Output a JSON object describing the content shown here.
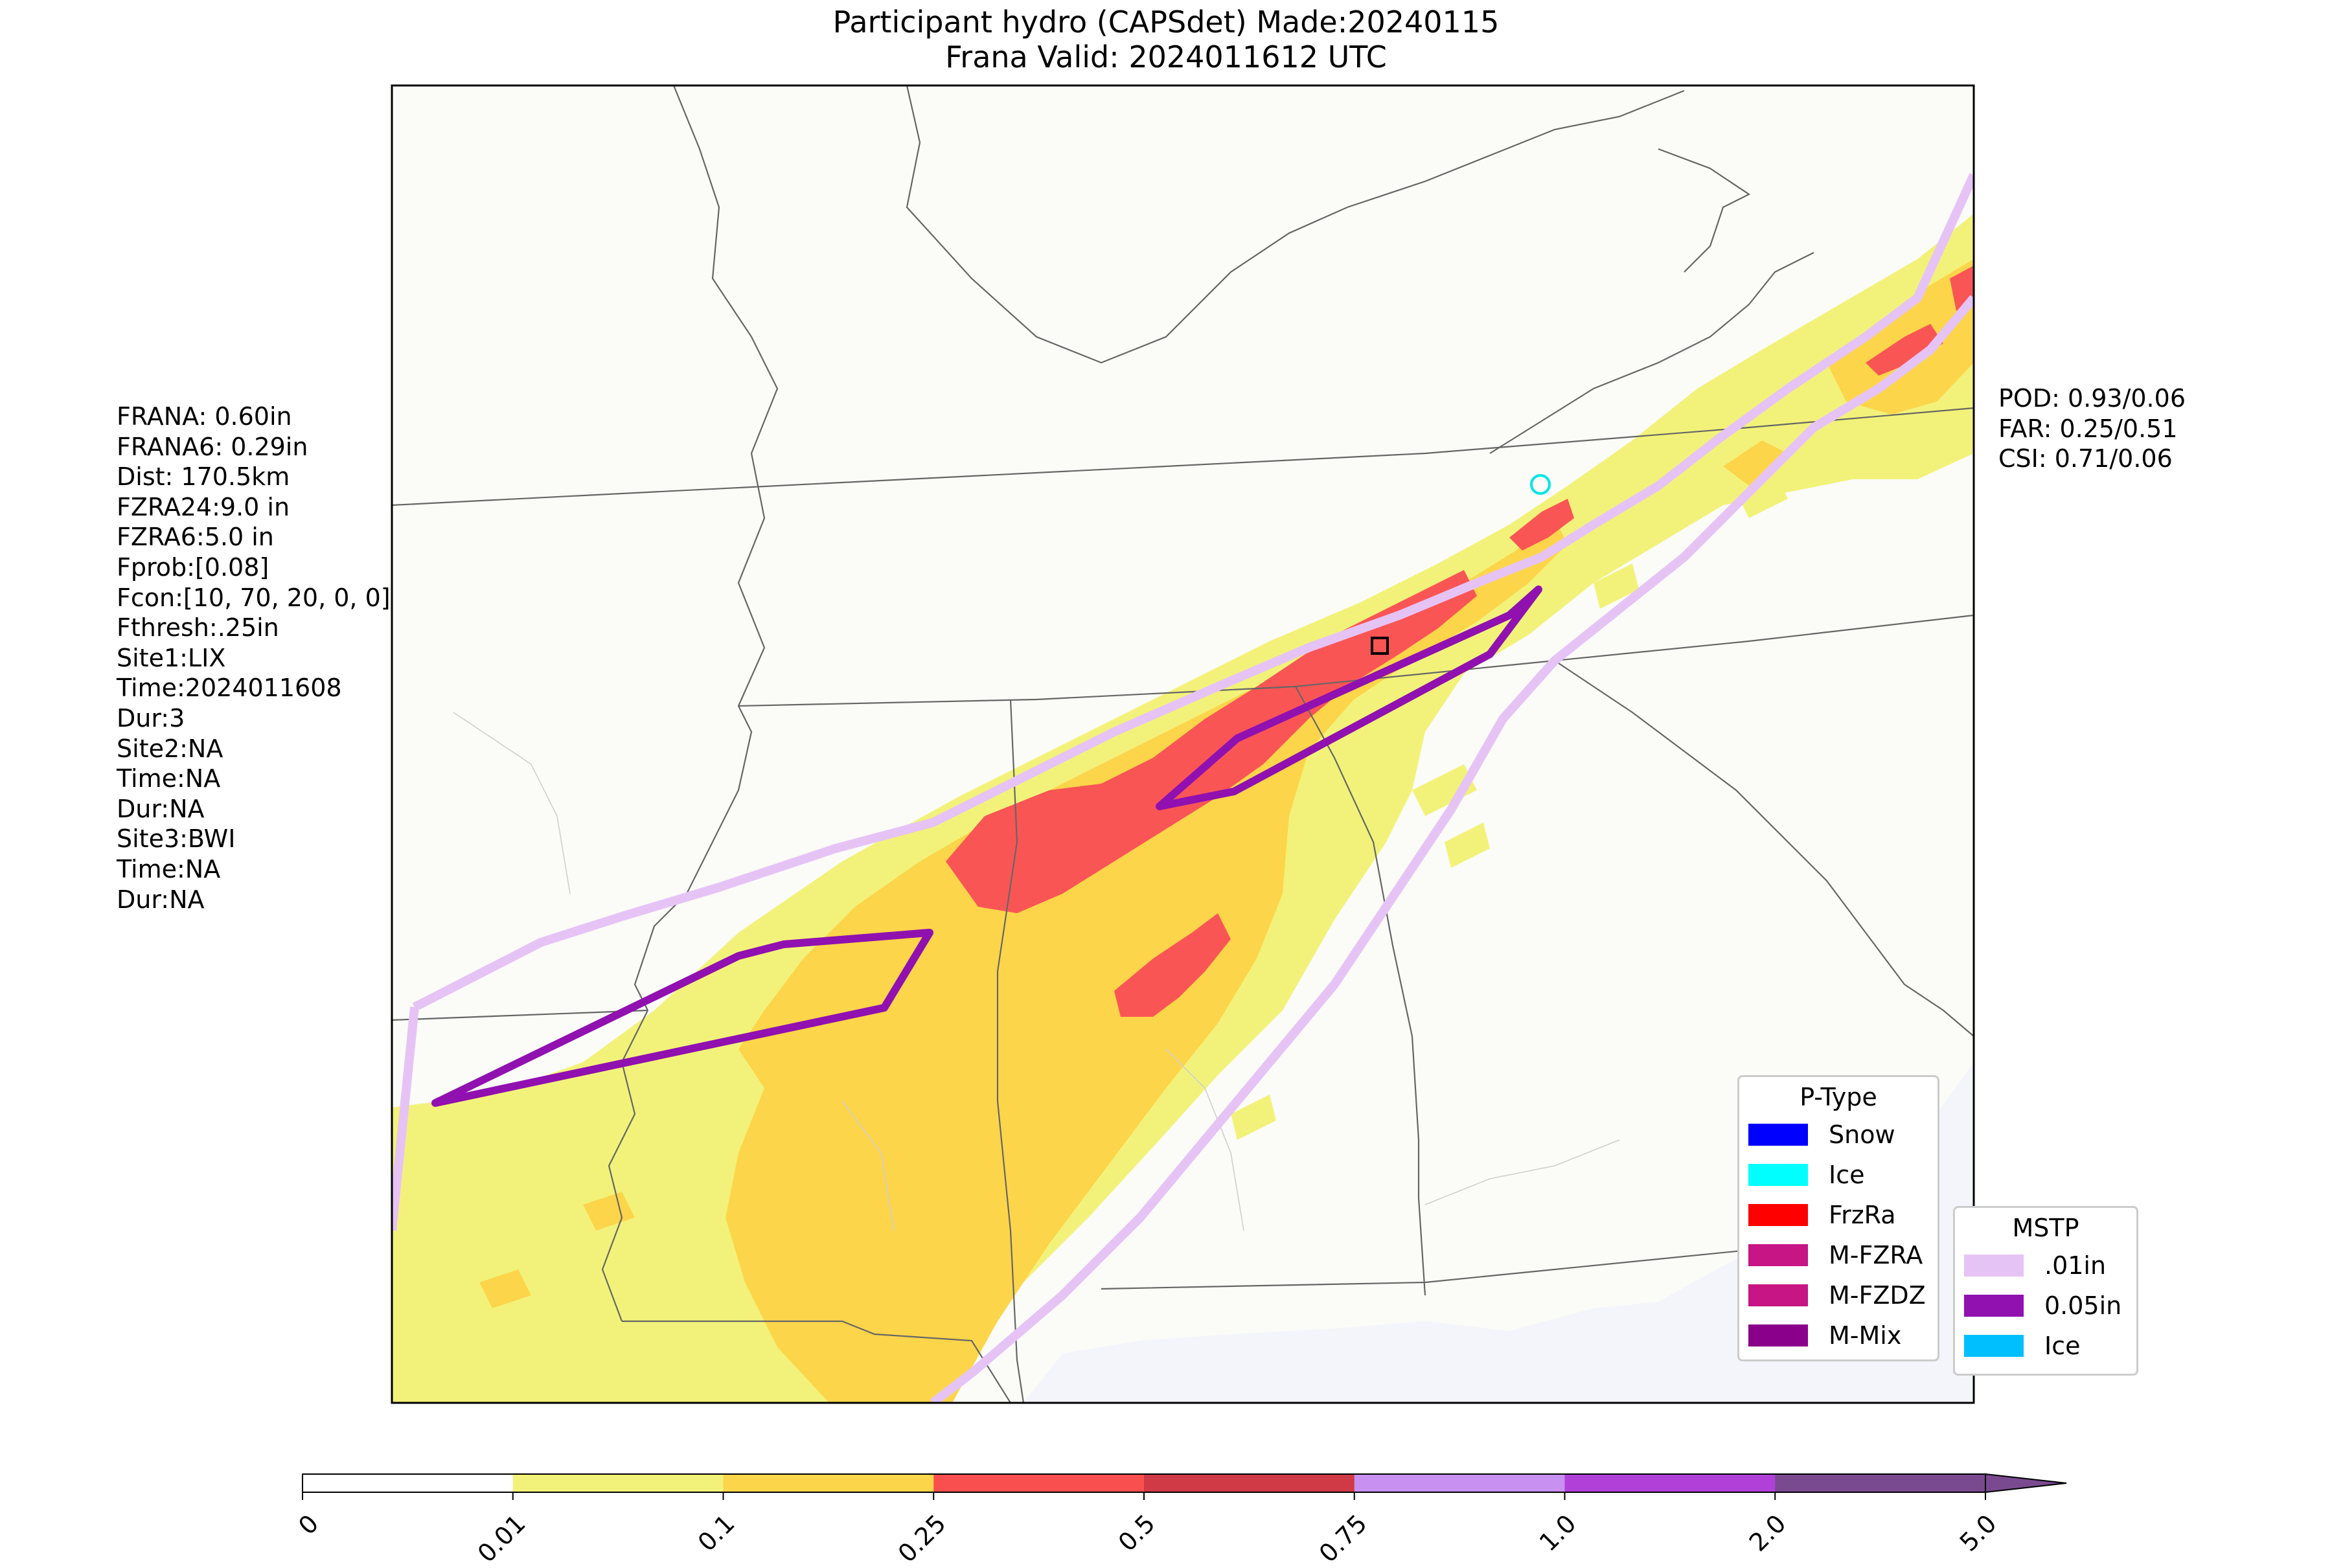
{
  "title": {
    "line1": "Participant hydro (CAPSdet) Made:20240115",
    "line2": "Frana Valid: 2024011612 UTC"
  },
  "left_stats": [
    "FRANA: 0.60in",
    "FRANA6: 0.29in",
    "Dist: 170.5km",
    "FZRA24:9.0 in",
    "FZRA6:5.0 in",
    "Fprob:[0.08]",
    "Fcon:[10, 70, 20, 0, 0]",
    "Fthresh:.25in",
    "Site1:LIX",
    "Time:2024011608",
    "Dur:3",
    "Site2:NA",
    "Time:NA",
    "Dur:NA",
    "Site3:BWI",
    "Time:NA",
    "Dur:NA"
  ],
  "right_stats": [
    "POD: 0.93/0.06",
    "FAR: 0.25/0.51",
    "CSI: 0.71/0.06"
  ],
  "ptype_legend": {
    "title": "P-Type",
    "items": [
      {
        "label": "Snow",
        "color": "#0000ff"
      },
      {
        "label": "Ice",
        "color": "#00ffff"
      },
      {
        "label": "FrzRa",
        "color": "#ff0000"
      },
      {
        "label": "M-FZRA",
        "color": "#c71585"
      },
      {
        "label": "M-FZDZ",
        "color": "#c71585"
      },
      {
        "label": "M-Mix",
        "color": "#8b008b"
      }
    ]
  },
  "mstp_legend": {
    "title": "MSTP",
    "items": [
      {
        "label": ".01in",
        "color": "#e6c3f5"
      },
      {
        "label": "0.05in",
        "color": "#9010b0"
      },
      {
        "label": "Ice",
        "color": "#00bfff"
      }
    ]
  },
  "colorbar": {
    "ticks": [
      "0",
      "0.01",
      "0.1",
      "0.25",
      "0.5",
      "0.75",
      "1.0",
      "2.0",
      "5.0"
    ],
    "colors": [
      "#ffffff",
      "#f2f27a",
      "#fdd54a",
      "#fa4f4f",
      "#d03a46",
      "#c890f0",
      "#b040d8",
      "#7a4a90"
    ]
  },
  "colors": {
    "light_precip": "#f2f27a",
    "moderate_precip": "#fdd54a",
    "heavy_precip": "#fa5555",
    "contour_01": "#e6c3f5",
    "contour_05": "#9010b0",
    "site_marker": "#00e5e5"
  }
}
